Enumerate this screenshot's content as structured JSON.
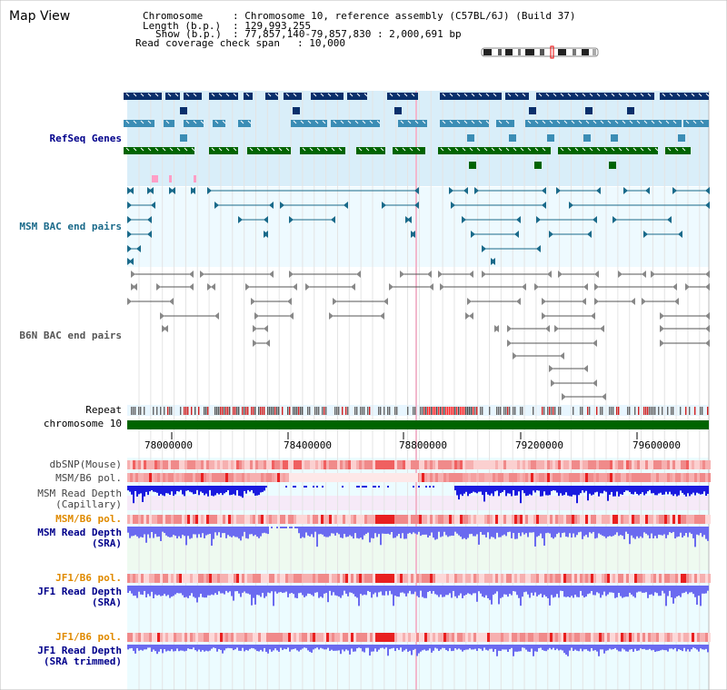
{
  "app": {
    "title": "Map View"
  },
  "header": {
    "chromosome_label": "Chromosome",
    "chromosome_value": ": Chromosome 10, reference assembly (C57BL/6J) (Build 37)",
    "length_label": "Length (b.p.)",
    "length_value": ": 129,993,255",
    "show_label": "Show (b.p.)",
    "show_value": ": 77,857,140-79,857,830 : 2,000,691 bp",
    "coverage_label": "Read coverage check span",
    "coverage_value": ": 10,000"
  },
  "tracks": {
    "refseq": "RefSeq Genes",
    "msm_bac": "MSM BAC end pairs",
    "b6n_bac": "B6N BAC end pairs",
    "repeat": "Repeat",
    "chromosome": "chromosome 10",
    "dbsnp": "dbSNP(Mouse)",
    "msm_b6_pol": "MSM/B6 pol.",
    "msm_depth_cap_1": "MSM Read Depth",
    "msm_depth_cap_2": "(Capillary)",
    "msm_b6_pol2": "MSM/B6 pol.",
    "msm_depth_sra_1": "MSM Read Depth",
    "msm_depth_sra_2": "(SRA)",
    "jf1_b6_pol": "JF1/B6 pol.",
    "jf1_depth_sra_1": "JF1 Read Depth",
    "jf1_depth_sra_2": "(SRA)",
    "jf1_b6_pol2": "JF1/B6 pol.",
    "jf1_depth_trim_1": "JF1 Read Depth",
    "jf1_depth_trim_2": "(SRA trimmed)"
  },
  "axis": {
    "ticks": [
      "78000000",
      "78400000",
      "78800000",
      "79200000",
      "79600000"
    ]
  },
  "colors": {
    "refseq_dark": "#0a2f6b",
    "refseq_light": "#3b8db5",
    "refseq_green": "#006400",
    "refseq_bg": "#d9eef9",
    "bac_bg": "#eefaff",
    "msm_bac_line": "#1a6a8a",
    "b6n_bac_line": "#555555",
    "chromosome_bar": "#006400",
    "depth_blue": "#1a1adf",
    "depth_light": "#6a6af0",
    "pol_red": "#e83030",
    "track_label_teal": "#1a6a8a",
    "track_label_blue": "#00008b",
    "track_label_orange": "#e08a00"
  }
}
